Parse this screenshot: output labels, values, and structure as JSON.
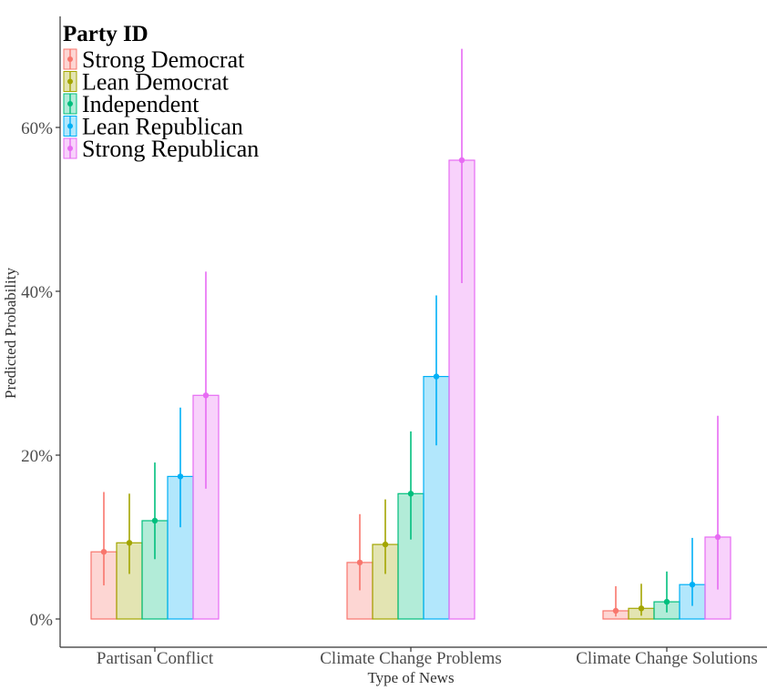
{
  "chart_data": {
    "type": "bar",
    "xlabel": "Type of News",
    "ylabel": "Predicted Probability",
    "ylim": [
      -3.5,
      70
    ],
    "yticks": [
      0,
      20,
      40,
      60
    ],
    "ytick_labels": [
      "0%",
      "20%",
      "40%",
      "60%"
    ],
    "grid": false,
    "error_bars": true,
    "legend": {
      "title": "Party ID",
      "placement": "top-left"
    },
    "categories": [
      "Partisan Conflict",
      "Climate Change Problems",
      "Climate Change Solutions"
    ],
    "series": [
      {
        "name": "Strong Democrat",
        "color": "#F8766D",
        "values": [
          8.2,
          6.9,
          1.0
        ],
        "lower": [
          4.1,
          3.5,
          0.3
        ],
        "upper": [
          15.5,
          12.8,
          4.0
        ]
      },
      {
        "name": "Lean Democrat",
        "color": "#A3A500",
        "values": [
          9.3,
          9.1,
          1.3
        ],
        "lower": [
          5.5,
          5.5,
          0.4
        ],
        "upper": [
          15.3,
          14.6,
          4.3
        ]
      },
      {
        "name": "Independent",
        "color": "#00BF7D",
        "values": [
          12.0,
          15.3,
          2.1
        ],
        "lower": [
          7.3,
          9.7,
          0.8
        ],
        "upper": [
          19.1,
          22.9,
          5.8
        ]
      },
      {
        "name": "Lean Republican",
        "color": "#00B0F6",
        "values": [
          17.4,
          29.6,
          4.2
        ],
        "lower": [
          11.2,
          21.2,
          1.6
        ],
        "upper": [
          25.8,
          39.5,
          9.9
        ]
      },
      {
        "name": "Strong Republican",
        "color": "#E76BF3",
        "values": [
          27.3,
          56.0,
          10.0
        ],
        "lower": [
          15.9,
          41.0,
          3.6
        ],
        "upper": [
          42.4,
          69.6,
          24.8
        ]
      }
    ]
  }
}
